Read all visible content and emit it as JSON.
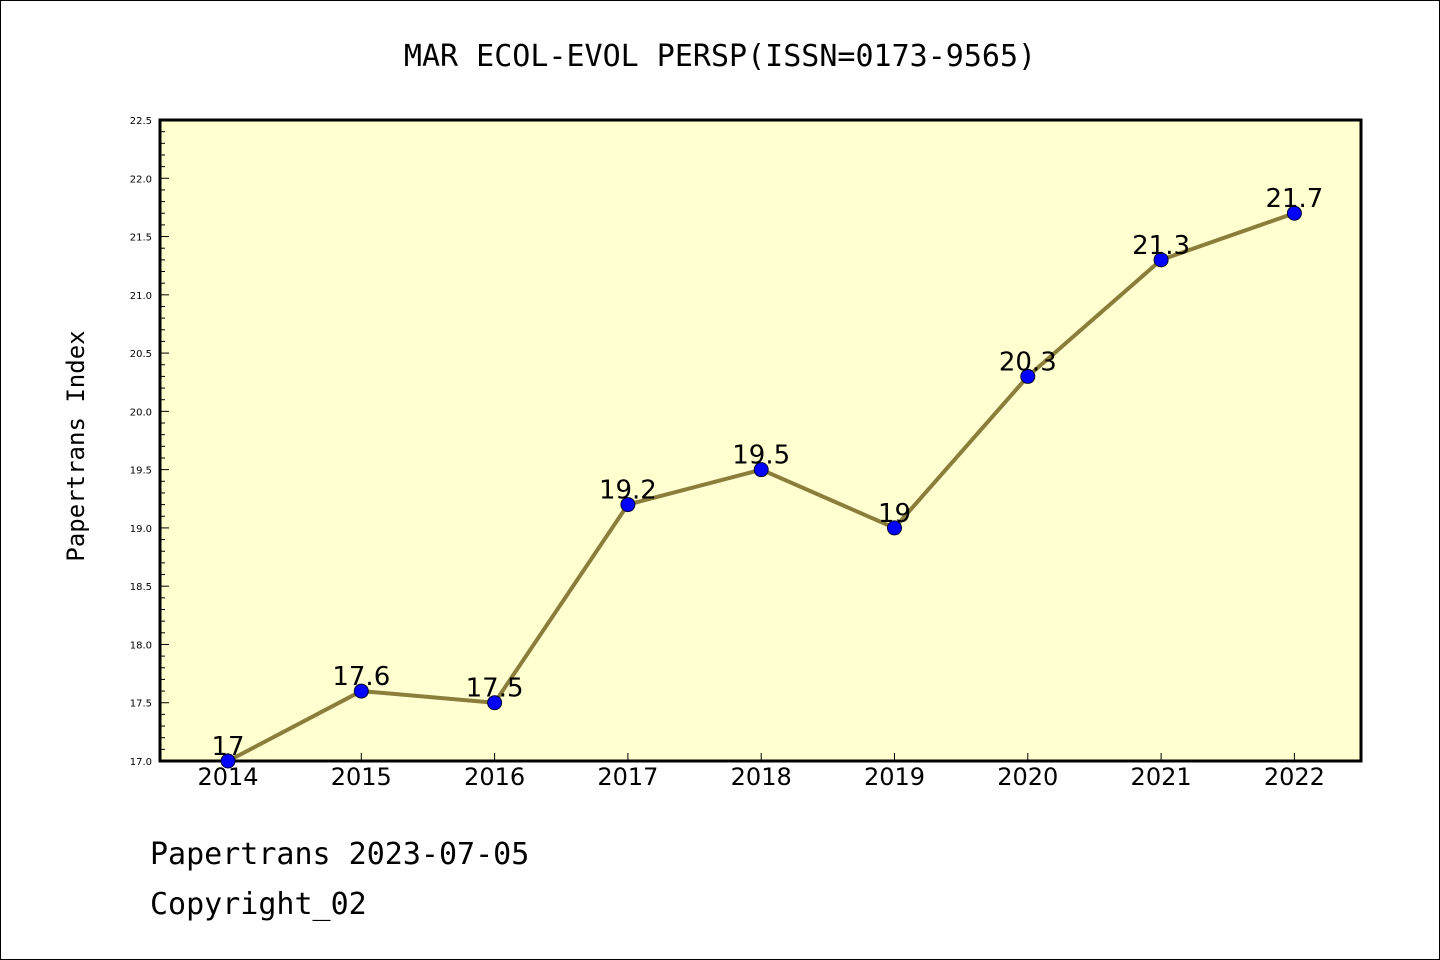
{
  "chart_data": {
    "type": "line",
    "title": "MAR ECOL-EVOL PERSP(ISSN=0173-9565)",
    "xlabel": "",
    "ylabel": "Papertrans Index",
    "categories": [
      "2014",
      "2015",
      "2016",
      "2017",
      "2018",
      "2019",
      "2020",
      "2021",
      "2022"
    ],
    "series": [
      {
        "values": [
          17,
          17.6,
          17.5,
          19.2,
          19.5,
          19,
          20.3,
          21.3,
          21.7
        ],
        "labels": [
          "17",
          "17.6",
          "17.5",
          "19.2",
          "19.5",
          "19",
          "20.3",
          "21.3",
          "21.7"
        ]
      }
    ],
    "ylim": [
      17.0,
      22.5
    ],
    "yticks": [
      "17.0",
      "17.5",
      "18.0",
      "18.5",
      "19.0",
      "19.5",
      "20.0",
      "20.5",
      "21.0",
      "21.5",
      "22.0",
      "22.5"
    ],
    "grid": false,
    "legend": "none"
  },
  "footer": {
    "line1": "Papertrans 2023-07-05",
    "line2": "Copyright_02"
  },
  "colors": {
    "plot_background": "#ffffd0",
    "line": "#8b7d3a",
    "marker": "#0000ff",
    "axis": "#000000"
  }
}
